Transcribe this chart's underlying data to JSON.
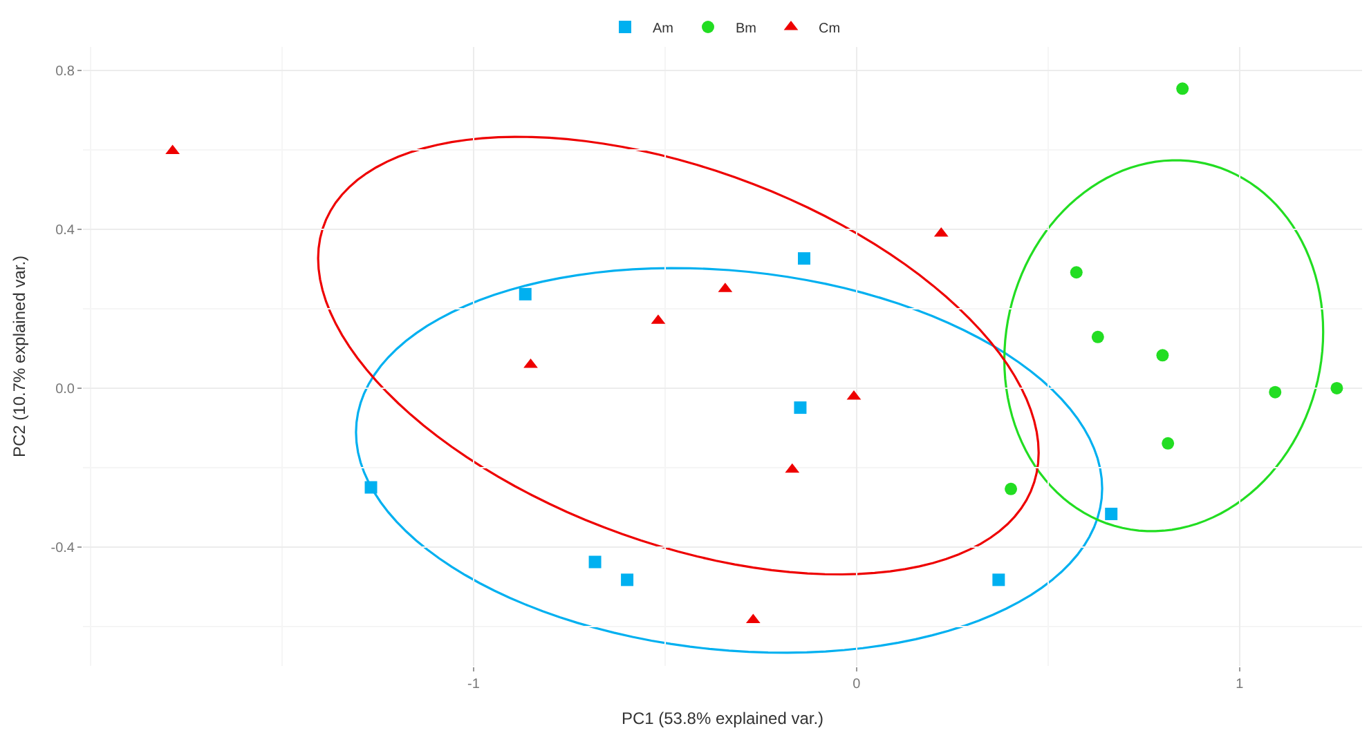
{
  "chart_data": {
    "type": "scatter",
    "xlabel": "PC1 (53.8% explained var.)",
    "ylabel": "PC2 (10.7% explained var.)",
    "xlim": [
      -2.02,
      1.32
    ],
    "ylim": [
      -0.7,
      0.86
    ],
    "xticks": [
      -1,
      0,
      1
    ],
    "yticks": [
      -0.4,
      {
        "value": 0,
        "label": "0.0"
      },
      0.4,
      0.8
    ],
    "grid": true,
    "legend": "top",
    "series": [
      {
        "name": "Am",
        "color": "#00b0f0",
        "marker": "square",
        "x": [
          -0.865,
          -0.137,
          -0.147,
          -1.268,
          -0.683,
          -0.599,
          0.371,
          0.665
        ],
        "values": [
          0.237,
          0.327,
          -0.049,
          -0.25,
          -0.438,
          -0.483,
          -0.483,
          -0.317
        ]
      },
      {
        "name": "Bm",
        "color": "#22dd22",
        "marker": "circle",
        "x": [
          0.851,
          0.574,
          0.63,
          0.799,
          1.093,
          1.254,
          0.813,
          0.403
        ],
        "values": [
          0.755,
          0.292,
          0.129,
          0.083,
          -0.01,
          0.0,
          -0.139,
          -0.254
        ]
      },
      {
        "name": "Cm",
        "color": "#ee0000",
        "marker": "triangle",
        "x": [
          -1.786,
          0.221,
          -0.343,
          -0.518,
          -0.851,
          -0.007,
          -0.168,
          -0.27
        ],
        "values": [
          0.598,
          0.39,
          0.25,
          0.17,
          0.059,
          -0.021,
          -0.205,
          -0.584
        ]
      }
    ]
  }
}
